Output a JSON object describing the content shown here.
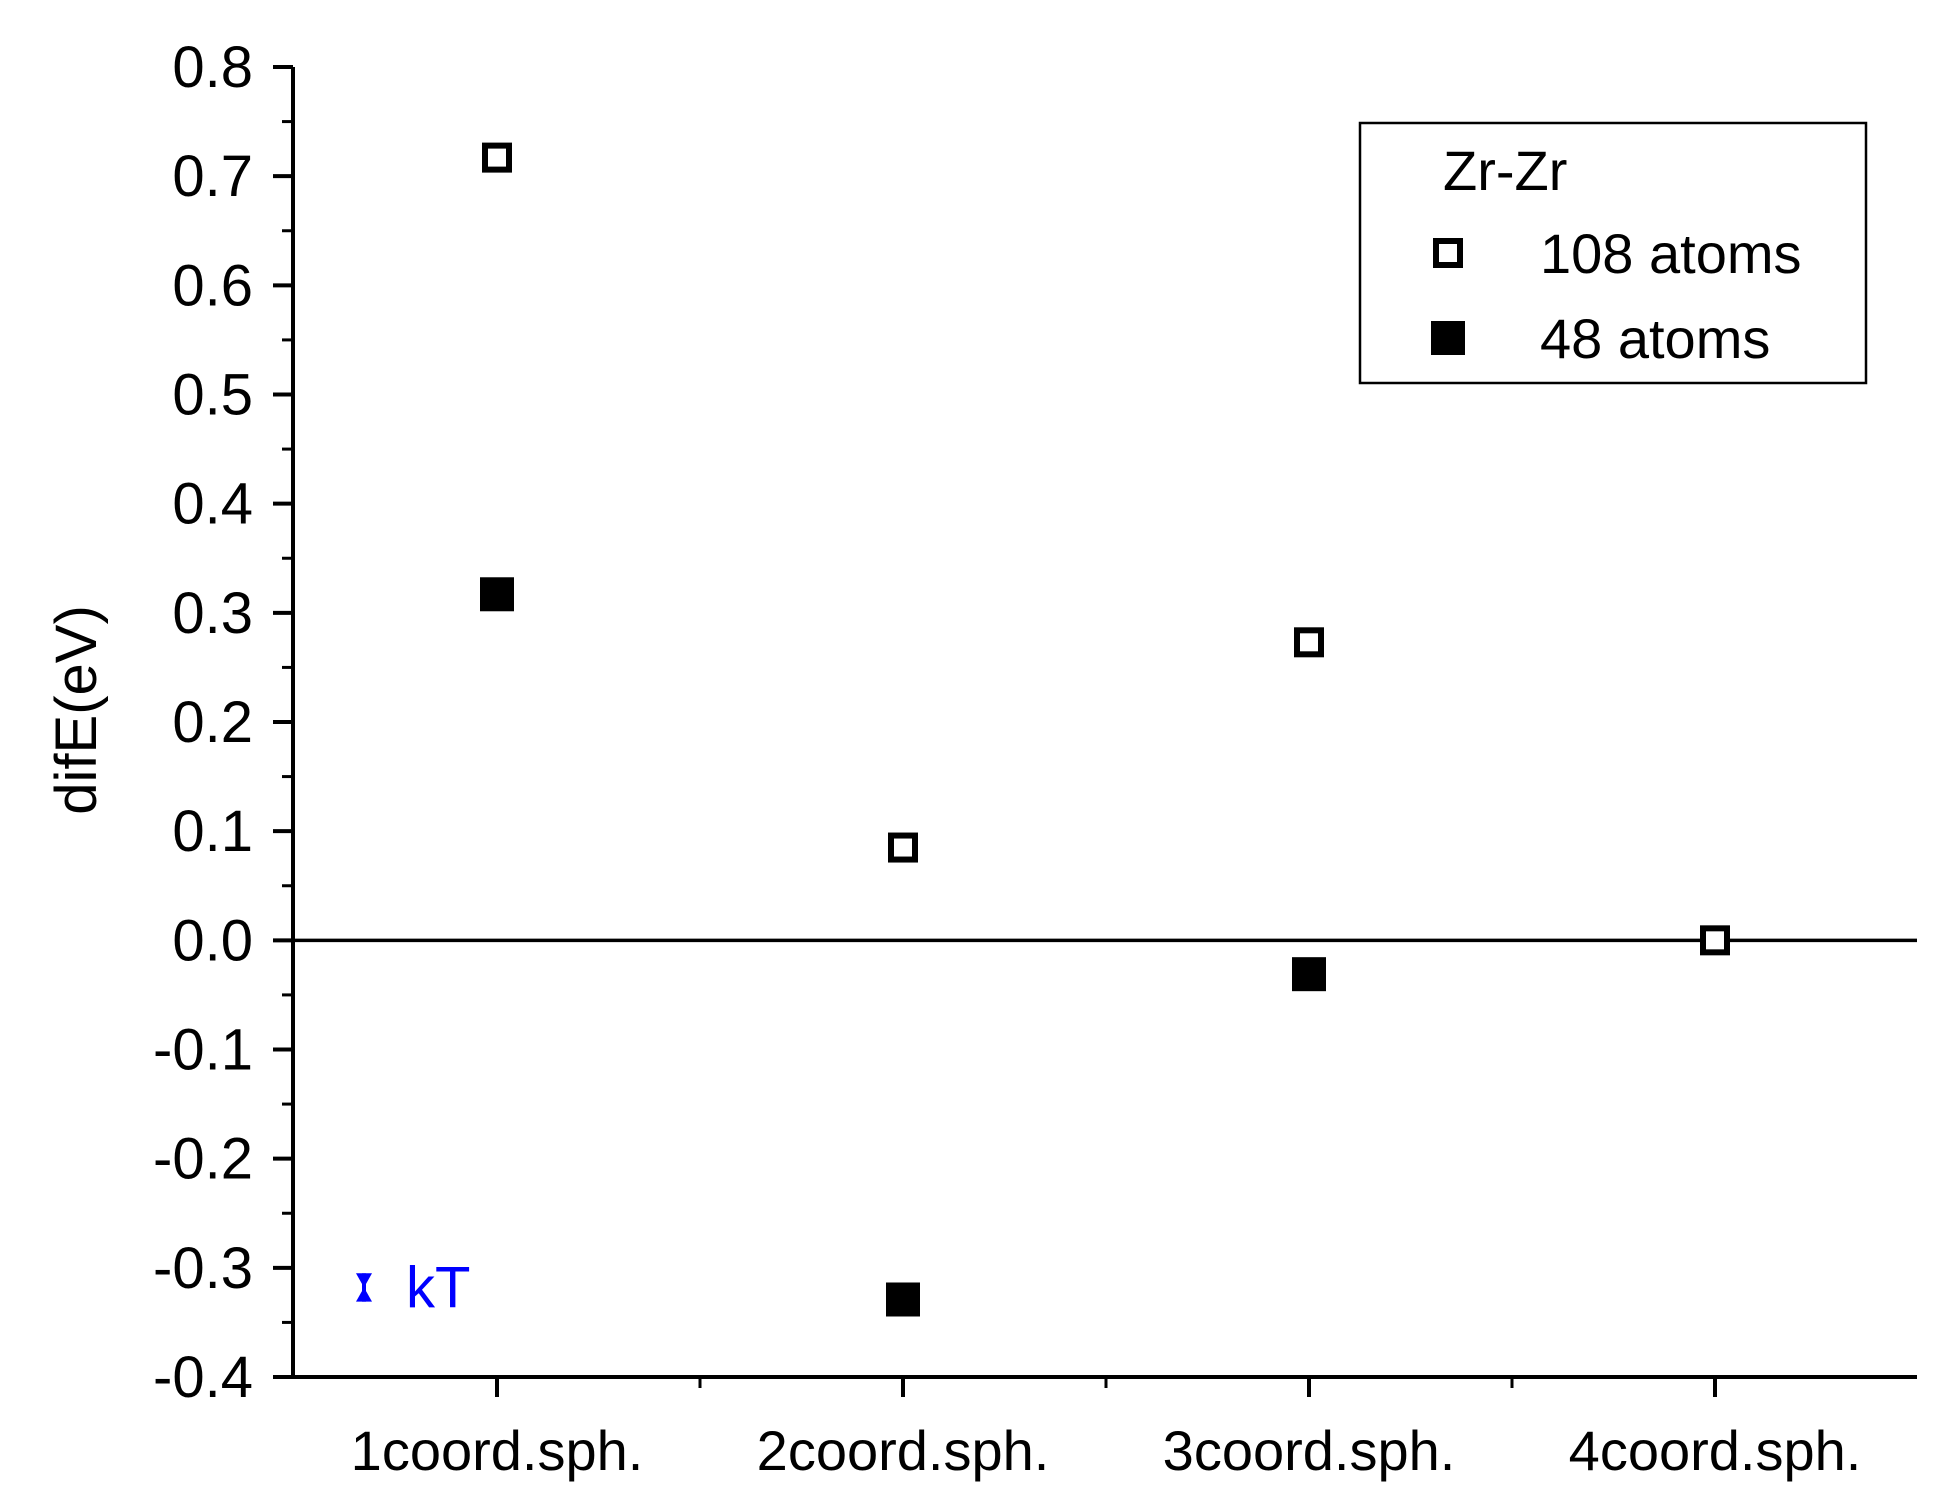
{
  "chart_data": {
    "type": "scatter",
    "title": "",
    "xlabel": "",
    "ylabel": "difE(eV)",
    "categories": [
      "1coord.sph.",
      "2coord.sph.",
      "3coord.sph.",
      "4coord.sph."
    ],
    "ylim": [
      -0.4,
      0.8
    ],
    "yticks": [
      "0.8",
      "0.7",
      "0.6",
      "0.5",
      "0.4",
      "0.3",
      "0.2",
      "0.1",
      "0.0",
      "-0.1",
      "-0.2",
      "-0.3",
      "-0.4"
    ],
    "ytick_values": [
      0.8,
      0.7,
      0.6,
      0.5,
      0.4,
      0.3,
      0.2,
      0.1,
      0.0,
      -0.1,
      -0.2,
      -0.3,
      -0.4
    ],
    "zero_line": true,
    "grid": false,
    "legend": {
      "title": "Zr-Zr",
      "placement": "top-right"
    },
    "series": [
      {
        "name": "108 atoms",
        "marker": "open-square",
        "color": "#000000",
        "values": [
          0.717,
          0.085,
          0.273,
          0.0
        ]
      },
      {
        "name": "48 atoms",
        "marker": "filled-square",
        "color": "#000000",
        "values": [
          0.317,
          -0.329,
          -0.031,
          null
        ]
      }
    ],
    "annotation": {
      "text": "kT",
      "color": "#0000ff",
      "y_center": -0.318,
      "y_half_range": 0.013
    }
  }
}
